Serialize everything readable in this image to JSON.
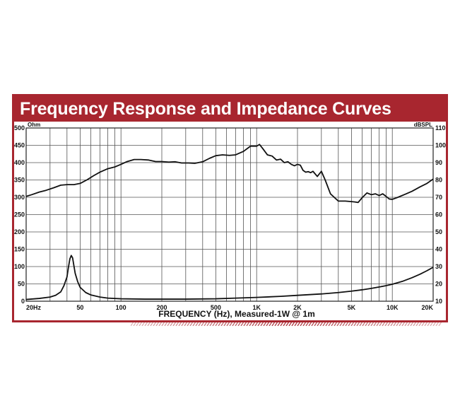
{
  "colors": {
    "frame": "#a8262f",
    "banner_text": "#ffffff",
    "grid": "#555555",
    "curve": "#111111",
    "axis_text": "#111111"
  },
  "chart_data": {
    "type": "line",
    "title": "Frequency Response and Impedance Curves",
    "xlabel": "FREQUENCY (Hz), Measured-1W @ 1m",
    "x_scale": "log",
    "xlim": [
      20,
      20000
    ],
    "x_tick_labels": [
      {
        "value": 20,
        "label": "20Hz"
      },
      {
        "value": 50,
        "label": "50"
      },
      {
        "value": 100,
        "label": "100"
      },
      {
        "value": 200,
        "label": "200"
      },
      {
        "value": 500,
        "label": "500"
      },
      {
        "value": 1000,
        "label": "1K"
      },
      {
        "value": 2000,
        "label": "2K"
      },
      {
        "value": 5000,
        "label": "5K"
      },
      {
        "value": 10000,
        "label": "10K"
      },
      {
        "value": 20000,
        "label": "20K"
      }
    ],
    "left_axis": {
      "unit": "Ohm",
      "range": [
        0,
        500
      ],
      "ticks": [
        0,
        50,
        100,
        150,
        200,
        250,
        300,
        350,
        400,
        450,
        500
      ]
    },
    "right_axis": {
      "unit": "dBSPL",
      "range": [
        10,
        110
      ],
      "ticks": [
        10,
        20,
        30,
        40,
        50,
        60,
        70,
        80,
        90,
        100,
        110
      ]
    },
    "grid": true,
    "series": [
      {
        "axis": "right",
        "x": [
          20,
          22,
          25,
          28,
          32,
          36,
          40,
          45,
          50,
          56,
          63,
          70,
          80,
          90,
          100,
          110,
          125,
          140,
          160,
          180,
          200,
          225,
          250,
          280,
          315,
          350,
          400,
          450,
          500,
          560,
          630,
          700,
          800,
          900,
          1000,
          1050,
          1100,
          1200,
          1300,
          1400,
          1500,
          1600,
          1700,
          1800,
          1900,
          2000,
          2100,
          2200,
          2300,
          2400,
          2500,
          2600,
          2800,
          3000,
          3200,
          3500,
          4000,
          4500,
          5000,
          5300,
          5600,
          6000,
          6500,
          7000,
          7500,
          8000,
          8500,
          9000,
          9500,
          10000,
          11000,
          12500,
          14000,
          16000,
          18000,
          20000
        ],
        "y": [
          70.5,
          71.5,
          73,
          74,
          75.5,
          77,
          77.3,
          77.3,
          78,
          80,
          82.5,
          84.5,
          86.5,
          87.5,
          89,
          90.5,
          91.8,
          91.8,
          91.5,
          90.6,
          90.6,
          90.3,
          90.5,
          89.8,
          89.8,
          89.6,
          90.5,
          92.5,
          94,
          94.5,
          94.2,
          94.5,
          96.5,
          99.5,
          99.5,
          100.5,
          98.5,
          94.5,
          93.8,
          91.5,
          92,
          90,
          90.5,
          89,
          88.2,
          89,
          88.5,
          85.5,
          84.5,
          84.8,
          84.2,
          85,
          82,
          85,
          80,
          72,
          67.8,
          67.8,
          67.5,
          67.3,
          67,
          69.8,
          72.5,
          71.5,
          72,
          71,
          72,
          70.5,
          69,
          68.8,
          70,
          71.8,
          73.5,
          76,
          78,
          80.5
        ]
      },
      {
        "axis": "left",
        "x": [
          20,
          25,
          30,
          33,
          36,
          38,
          40,
          41,
          42,
          43,
          44,
          45,
          46,
          48,
          50,
          55,
          60,
          70,
          80,
          100,
          150,
          200,
          300,
          500,
          700,
          1000,
          1500,
          2000,
          3000,
          4000,
          5000,
          6000,
          7000,
          8000,
          9000,
          10000,
          12000,
          14000,
          16000,
          18000,
          20000
        ],
        "y": [
          5,
          8,
          12,
          17,
          27,
          45,
          70,
          98,
          122,
          132,
          125,
          102,
          80,
          56,
          40,
          25,
          18,
          12,
          9,
          7,
          6,
          6,
          6,
          7,
          9,
          11,
          14,
          17,
          21,
          25,
          29,
          33,
          37,
          41,
          45,
          49,
          58,
          68,
          78,
          88,
          98
        ]
      }
    ]
  }
}
